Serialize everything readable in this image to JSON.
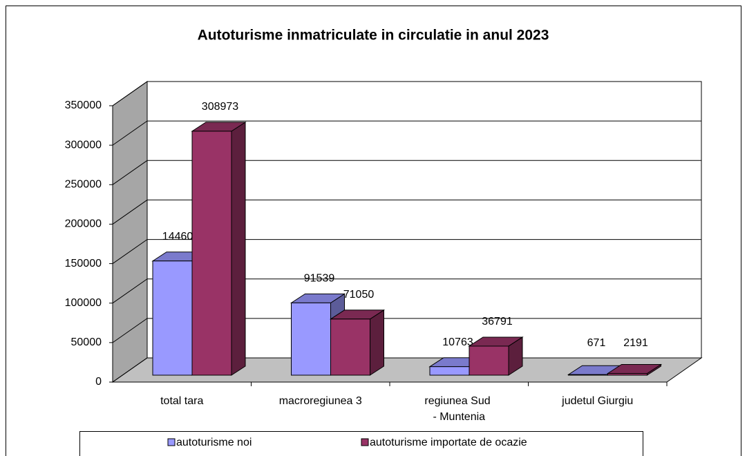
{
  "chart_data": {
    "type": "bar3d",
    "title": "Autoturisme inmatriculate in circulatie in anul 2023",
    "categories": [
      "total tara",
      "macroregiunea 3",
      "regiunea Sud - Muntenia",
      "judetul Giurgiu"
    ],
    "series": [
      {
        "name": "autoturisme noi",
        "color": "#9999ff",
        "values": [
          144609,
          91539,
          10763,
          671
        ]
      },
      {
        "name": "autoturisme importate de ocazie",
        "color": "#993366",
        "values": [
          308973,
          71050,
          36791,
          2191
        ]
      }
    ],
    "ylim": [
      0,
      350000
    ],
    "yticks": [
      0,
      50000,
      100000,
      150000,
      200000,
      250000,
      300000,
      350000
    ],
    "grid": true,
    "legend": "bottom"
  }
}
